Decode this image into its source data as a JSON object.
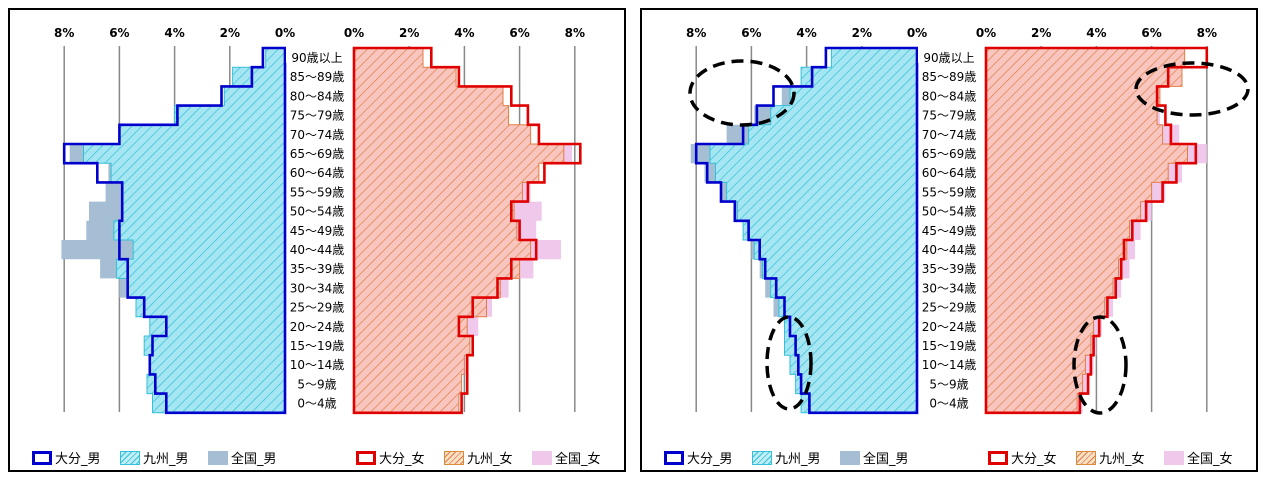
{
  "colors": {
    "oita_male": "#0000cc",
    "oita_female": "#e00000",
    "kyushu_male_fill": "#a5e6f2",
    "kyushu_male_hatch": "#33c0d8",
    "kyushu_female_fill": "#f8c6bf",
    "kyushu_female_hatch": "#e07f45",
    "national_male": "#a6bed4",
    "national_female": "#efc8ec"
  },
  "chart_data": [
    {
      "type": "bar",
      "orientation": "horizontal",
      "layout": "population-pyramid",
      "x_ticks_male": [
        "8%",
        "6%",
        "4%",
        "2%",
        "0%"
      ],
      "x_ticks_female": [
        "0%",
        "2%",
        "4%",
        "6%",
        "8%"
      ],
      "xlim": [
        0,
        8
      ],
      "grid": true,
      "legend_position": "bottom",
      "categories": [
        "90歳以上",
        "85～89歳",
        "80～84歳",
        "75～79歳",
        "70～74歳",
        "65～69歳",
        "60～64歳",
        "55～59歳",
        "50～54歳",
        "45～49歳",
        "40～44歳",
        "35～39歳",
        "30～34歳",
        "25～29歳",
        "20～24歳",
        "15～19歳",
        "10～14歳",
        "5～9歳",
        "0～4歳"
      ],
      "legend": {
        "oita_male": "大分_男",
        "kyushu_male": "九州_男",
        "national_male": "全国_男",
        "oita_female": "大分_女",
        "kyushu_female": "九州_女",
        "national_female": "全国_女"
      },
      "series": [
        {
          "name": "大分_男",
          "side": "male",
          "values": [
            0.8,
            1.2,
            2.3,
            3.9,
            6.0,
            8.0,
            6.8,
            5.9,
            5.9,
            6.0,
            6.0,
            5.7,
            5.7,
            5.1,
            4.3,
            4.8,
            4.9,
            4.7,
            4.3
          ]
        },
        {
          "name": "九州_男",
          "side": "male",
          "values": [
            0.7,
            1.9,
            2.2,
            4.0,
            6.0,
            7.3,
            6.3,
            5.9,
            5.9,
            6.2,
            5.5,
            6.1,
            5.7,
            5.4,
            4.9,
            5.1,
            4.9,
            5.0,
            4.8
          ]
        },
        {
          "name": "全国_男",
          "side": "male",
          "values": [
            0.5,
            1.2,
            2.2,
            3.5,
            5.3,
            7.8,
            6.4,
            6.5,
            7.1,
            7.2,
            8.1,
            6.7,
            6.0,
            5.1,
            4.8,
            4.4,
            4.3,
            4.1,
            3.9
          ]
        },
        {
          "name": "大分_女",
          "side": "female",
          "values": [
            2.8,
            3.8,
            5.7,
            6.3,
            6.7,
            8.2,
            6.9,
            6.3,
            5.7,
            6.0,
            6.6,
            5.7,
            5.2,
            4.3,
            3.8,
            4.3,
            4.1,
            4.1,
            3.9
          ]
        },
        {
          "name": "九州_女",
          "side": "female",
          "values": [
            2.5,
            3.7,
            5.4,
            5.6,
            6.4,
            7.6,
            6.7,
            6.1,
            5.8,
            5.9,
            6.4,
            6.0,
            5.3,
            4.8,
            4.1,
            4.2,
            4.0,
            3.9,
            3.8
          ]
        },
        {
          "name": "全国_女",
          "side": "female",
          "values": [
            1.3,
            2.3,
            3.3,
            4.4,
            5.9,
            7.9,
            6.5,
            6.4,
            6.8,
            6.6,
            7.5,
            6.5,
            5.6,
            5.0,
            4.5,
            4.2,
            4.1,
            3.9,
            3.6
          ]
        }
      ]
    },
    {
      "type": "bar",
      "orientation": "horizontal",
      "layout": "population-pyramid",
      "x_ticks_male": [
        "8%",
        "6%",
        "4%",
        "2%",
        "0%"
      ],
      "x_ticks_female": [
        "0%",
        "2%",
        "4%",
        "6%",
        "8%"
      ],
      "xlim": [
        0,
        8
      ],
      "grid": true,
      "legend_position": "bottom",
      "categories": [
        "90歳以上",
        "85～89歳",
        "80～84歳",
        "75～79歳",
        "70～74歳",
        "65～69歳",
        "60～64歳",
        "55～59歳",
        "50～54歳",
        "45～49歳",
        "40～44歳",
        "35～39歳",
        "30～34歳",
        "25～29歳",
        "20～24歳",
        "15～19歳",
        "10～14歳",
        "5～9歳",
        "0～4歳"
      ],
      "legend": {
        "oita_male": "大分_男",
        "kyushu_male": "九州_男",
        "national_male": "全国_男",
        "oita_female": "大分_女",
        "kyushu_female": "九州_女",
        "national_female": "全国_女"
      },
      "series": [
        {
          "name": "大分_男",
          "side": "male",
          "values": [
            3.3,
            3.8,
            5.2,
            5.8,
            6.3,
            8.0,
            7.6,
            7.1,
            6.6,
            6.1,
            5.7,
            5.5,
            5.1,
            4.8,
            4.6,
            4.4,
            4.3,
            4.2,
            3.9
          ]
        },
        {
          "name": "九州_男",
          "side": "male",
          "values": [
            3.1,
            4.2,
            4.6,
            5.3,
            6.1,
            7.5,
            7.3,
            6.9,
            6.5,
            6.3,
            5.9,
            5.6,
            5.3,
            5.0,
            4.8,
            4.8,
            4.6,
            4.4,
            4.2
          ]
        },
        {
          "name": "全国_男",
          "side": "male",
          "values": [
            2.8,
            3.7,
            4.9,
            5.9,
            6.9,
            8.2,
            7.7,
            7.1,
            6.6,
            6.2,
            6.0,
            5.7,
            5.5,
            5.2,
            4.8,
            4.6,
            4.5,
            4.3,
            4.1
          ]
        },
        {
          "name": "大分_女",
          "side": "female",
          "values": [
            8.0,
            6.6,
            6.2,
            6.5,
            6.7,
            7.6,
            6.9,
            6.4,
            5.8,
            5.3,
            5.0,
            4.9,
            4.7,
            4.4,
            4.1,
            3.9,
            3.8,
            3.7,
            3.4
          ]
        },
        {
          "name": "九州_女",
          "side": "female",
          "values": [
            7.2,
            7.1,
            6.3,
            6.2,
            6.4,
            7.3,
            6.6,
            6.0,
            5.6,
            5.2,
            5.1,
            4.8,
            4.6,
            4.3,
            3.9,
            3.8,
            3.6,
            3.5,
            3.3
          ]
        },
        {
          "name": "全国_女",
          "side": "female",
          "values": [
            7.0,
            6.0,
            6.0,
            6.3,
            7.0,
            8.0,
            7.1,
            6.5,
            6.0,
            5.6,
            5.4,
            5.2,
            4.9,
            4.6,
            4.2,
            4.0,
            3.9,
            3.7,
            3.5
          ]
        }
      ],
      "annotations": [
        {
          "type": "dashed-ellipse",
          "target": "男 75～89歳"
        },
        {
          "type": "dashed-ellipse",
          "target": "女 80～89歳"
        },
        {
          "type": "dashed-ellipse",
          "target": "男 0～19歳"
        },
        {
          "type": "dashed-ellipse",
          "target": "女 0～19歳"
        }
      ]
    }
  ]
}
